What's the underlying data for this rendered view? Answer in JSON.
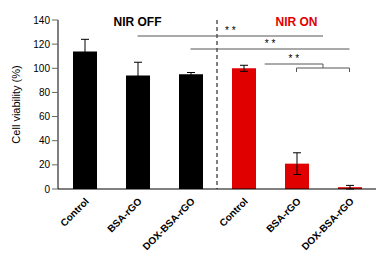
{
  "chart_data": {
    "type": "bar",
    "y_label": "Cell viability (%)",
    "categories": [
      "Control",
      "BSA-rGO",
      "DOX-BSA-rGO",
      "Control",
      "BSA-rGO",
      "DOX-BSA-rGO"
    ],
    "values": [
      114,
      94,
      95,
      100,
      21,
      1.5
    ],
    "errors": [
      10,
      11,
      1.5,
      2.5,
      9,
      1.5
    ],
    "colors": [
      "#000000",
      "#000000",
      "#000000",
      "#e00000",
      "#e00000",
      "#e00000"
    ],
    "ylim": [
      0,
      140
    ],
    "yticks": [
      0,
      20,
      40,
      60,
      80,
      100,
      120,
      140
    ],
    "grid": false,
    "group_labels": [
      {
        "text": "NIR OFF",
        "color": "#000000"
      },
      {
        "text": "NIR ON",
        "color": "#e00000"
      }
    ],
    "annotations": [
      "* *",
      "* *",
      "* *"
    ]
  }
}
